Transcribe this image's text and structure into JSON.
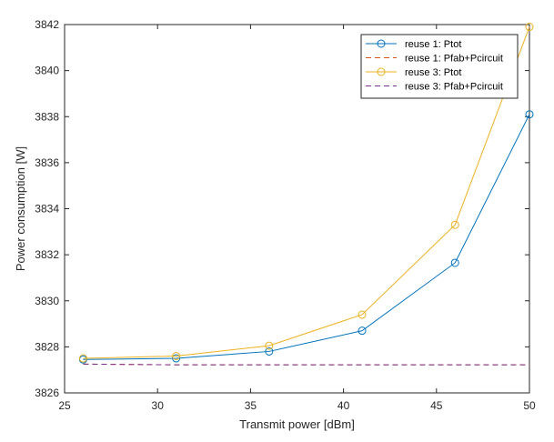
{
  "chart_data": {
    "type": "line",
    "xlabel": "Transmit power [dBm]",
    "ylabel": "Power consumption [W]",
    "xlim": [
      25,
      50
    ],
    "ylim": [
      3826,
      3842
    ],
    "xticks": [
      25,
      30,
      35,
      40,
      45,
      50
    ],
    "yticks": [
      3826,
      3828,
      3830,
      3832,
      3834,
      3836,
      3838,
      3840,
      3842
    ],
    "x": [
      26,
      31,
      36,
      41,
      46,
      50
    ],
    "grid": false,
    "legend_position": "top-right",
    "series": [
      {
        "name": "reuse 1: Ptot",
        "color": "#0072BD",
        "line_style": "solid",
        "marker": "circle",
        "values": [
          3827.45,
          3827.5,
          3827.8,
          3828.7,
          3831.65,
          3838.1
        ]
      },
      {
        "name": "reuse 1: Pfab+Pcircuit",
        "color": "#D95319",
        "line_style": "dashed",
        "marker": "none",
        "values": [
          3827.25,
          3827.22,
          3827.22,
          3827.22,
          3827.22,
          3827.22
        ]
      },
      {
        "name": "reuse 3: Ptot",
        "color": "#EDB120",
        "line_style": "solid",
        "marker": "circle",
        "values": [
          3827.5,
          3827.6,
          3828.05,
          3829.4,
          3833.3,
          3841.9
        ]
      },
      {
        "name": "reuse 3: Pfab+Pcircuit",
        "color": "#7E2F8E",
        "line_style": "dashed",
        "marker": "none",
        "values": [
          3827.25,
          3827.22,
          3827.22,
          3827.22,
          3827.22,
          3827.22
        ]
      }
    ]
  }
}
